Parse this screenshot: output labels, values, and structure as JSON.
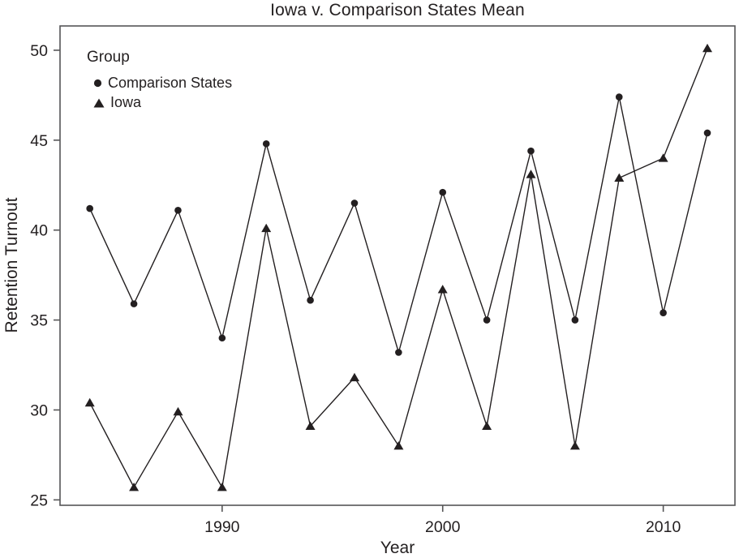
{
  "chart_data": {
    "type": "line",
    "title": "Iowa v. Comparison States Mean",
    "xlabel": "Year",
    "ylabel": "Retention Turnout",
    "legend_title": "Group",
    "legend_position": "top-left",
    "grid": false,
    "x": [
      1984,
      1986,
      1988,
      1990,
      1992,
      1994,
      1996,
      1998,
      2000,
      2002,
      2004,
      2006,
      2008,
      2010,
      2012
    ],
    "series": [
      {
        "name": "Comparison States",
        "marker": "circle",
        "values": [
          41.2,
          35.9,
          41.1,
          34.0,
          44.8,
          36.1,
          41.5,
          33.2,
          42.1,
          35.0,
          44.4,
          35.0,
          47.4,
          35.4,
          45.4
        ]
      },
      {
        "name": "Iowa",
        "marker": "triangle",
        "values": [
          30.4,
          25.7,
          29.9,
          25.7,
          40.1,
          29.1,
          31.8,
          28.0,
          36.7,
          29.1,
          43.1,
          28.0,
          42.9,
          44.0,
          50.1
        ]
      }
    ],
    "xticks": [
      1990,
      2000,
      2010
    ],
    "yticks": [
      25,
      30,
      35,
      40,
      45,
      50
    ],
    "xlim": [
      1982.65,
      2013.25
    ],
    "ylim": [
      24.7,
      51.35
    ],
    "colors": {
      "line": "#231f20",
      "marker": "#231f20",
      "text": "#231f20",
      "frame": "#555557"
    }
  }
}
